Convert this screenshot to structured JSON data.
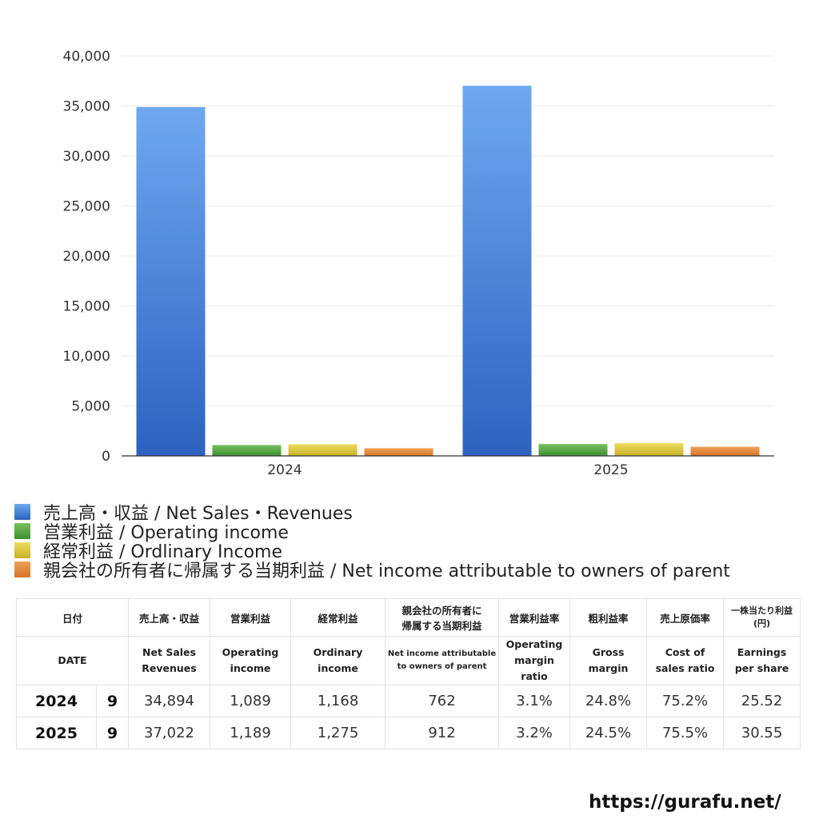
{
  "chart_data": {
    "type": "bar",
    "categories": [
      "2024",
      "2025"
    ],
    "series": [
      {
        "name": "売上高・収益 / Net Sales・Revenues",
        "values": [
          34894,
          37022
        ],
        "color_top": "#6fa8f0",
        "color_bottom": "#2d62c0"
      },
      {
        "name": "営業利益 / Operating income",
        "values": [
          1089,
          1189
        ],
        "color_top": "#79c062",
        "color_bottom": "#3f8f2f"
      },
      {
        "name": "経常利益 / Ordlinary Income",
        "values": [
          1168,
          1275
        ],
        "color_top": "#ecdc63",
        "color_bottom": "#c9b224"
      },
      {
        "name": "親会社の所有者に帰属する当期利益 / Net income attributable to owners of parent",
        "values": [
          762,
          912
        ],
        "color_top": "#efa057",
        "color_bottom": "#d6752a"
      }
    ],
    "ylim": [
      0,
      40000
    ],
    "yticks": [
      0,
      5000,
      10000,
      15000,
      20000,
      25000,
      30000,
      35000,
      40000
    ],
    "ytick_labels": [
      "0",
      "5,000",
      "10,000",
      "15,000",
      "20,000",
      "25,000",
      "30,000",
      "35,000",
      "40,000"
    ],
    "grid": true,
    "legend_position": "bottom-left",
    "title": "",
    "xlabel": "",
    "ylabel": ""
  },
  "table": {
    "header_jp": {
      "date": "日付",
      "net_sales": "売上高・収益",
      "operating_income": "営業利益",
      "ordinary_income": "経常利益",
      "net_income_l1": "親会社の所有者に",
      "net_income_l2": "帰属する当期利益",
      "operating_margin": "営業利益率",
      "gross_margin": "粗利益率",
      "cost_ratio": "売上原価率",
      "eps_l1": "一株当たり利益",
      "eps_l2": "(円)"
    },
    "header_en": {
      "date": "DATE",
      "net_sales_l1": "Net Sales",
      "net_sales_l2": "Revenues",
      "operating_income_l1": "Operating",
      "operating_income_l2": "income",
      "ordinary_income_l1": "Ordinary",
      "ordinary_income_l2": "income",
      "net_income_l1": "Net income attributable",
      "net_income_l2": "to owners of parent",
      "operating_margin_l1": "Operating",
      "operating_margin_l2": "margin",
      "operating_margin_l3": "ratio",
      "gross_margin_l1": "Gross",
      "gross_margin_l2": "margin",
      "cost_ratio_l1": "Cost of",
      "cost_ratio_l2": "sales ratio",
      "eps_l1": "Earnings",
      "eps_l2": "per share"
    },
    "rows": [
      {
        "year": "2024",
        "month": "9",
        "net_sales": "34,894",
        "operating_income": "1,089",
        "ordinary_income": "1,168",
        "net_income": "762",
        "operating_margin": "3.1%",
        "gross_margin": "24.8%",
        "cost_ratio": "75.2%",
        "eps": "25.52"
      },
      {
        "year": "2025",
        "month": "9",
        "net_sales": "37,022",
        "operating_income": "1,189",
        "ordinary_income": "1,275",
        "net_income": "912",
        "operating_margin": "3.2%",
        "gross_margin": "24.5%",
        "cost_ratio": "75.5%",
        "eps": "30.55"
      }
    ]
  },
  "watermark": "https://gurafu.net/"
}
